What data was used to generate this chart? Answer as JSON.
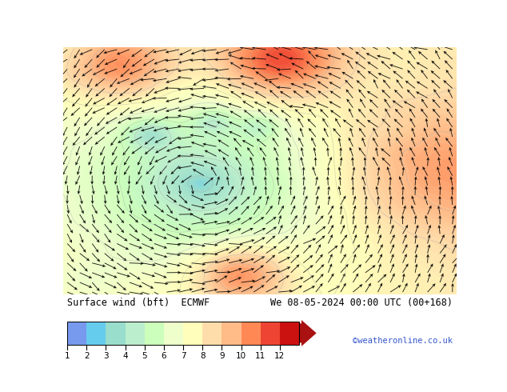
{
  "title_left": "Surface wind (bft)  ECMWF",
  "title_right": "We 08-05-2024 00:00 UTC (00+168)",
  "credit": "©weatheronline.co.uk",
  "colorbar_ticks": [
    1,
    2,
    3,
    4,
    5,
    6,
    7,
    8,
    9,
    10,
    11,
    12
  ],
  "colorbar_colors": [
    "#7799EE",
    "#66CCEE",
    "#99DDCC",
    "#BBEECC",
    "#CCFFBB",
    "#EEFFCC",
    "#FFFFBB",
    "#FFDDAA",
    "#FFBB88",
    "#FF8855",
    "#EE4433",
    "#CC1111"
  ],
  "bg_color": "#FFFFFF",
  "colorbar_arrow_color": "#AA1111",
  "wind_arrow_color": "#000000",
  "contour_color": "#AAAAAA",
  "figsize": [
    6.34,
    4.9
  ],
  "dpi": 100
}
